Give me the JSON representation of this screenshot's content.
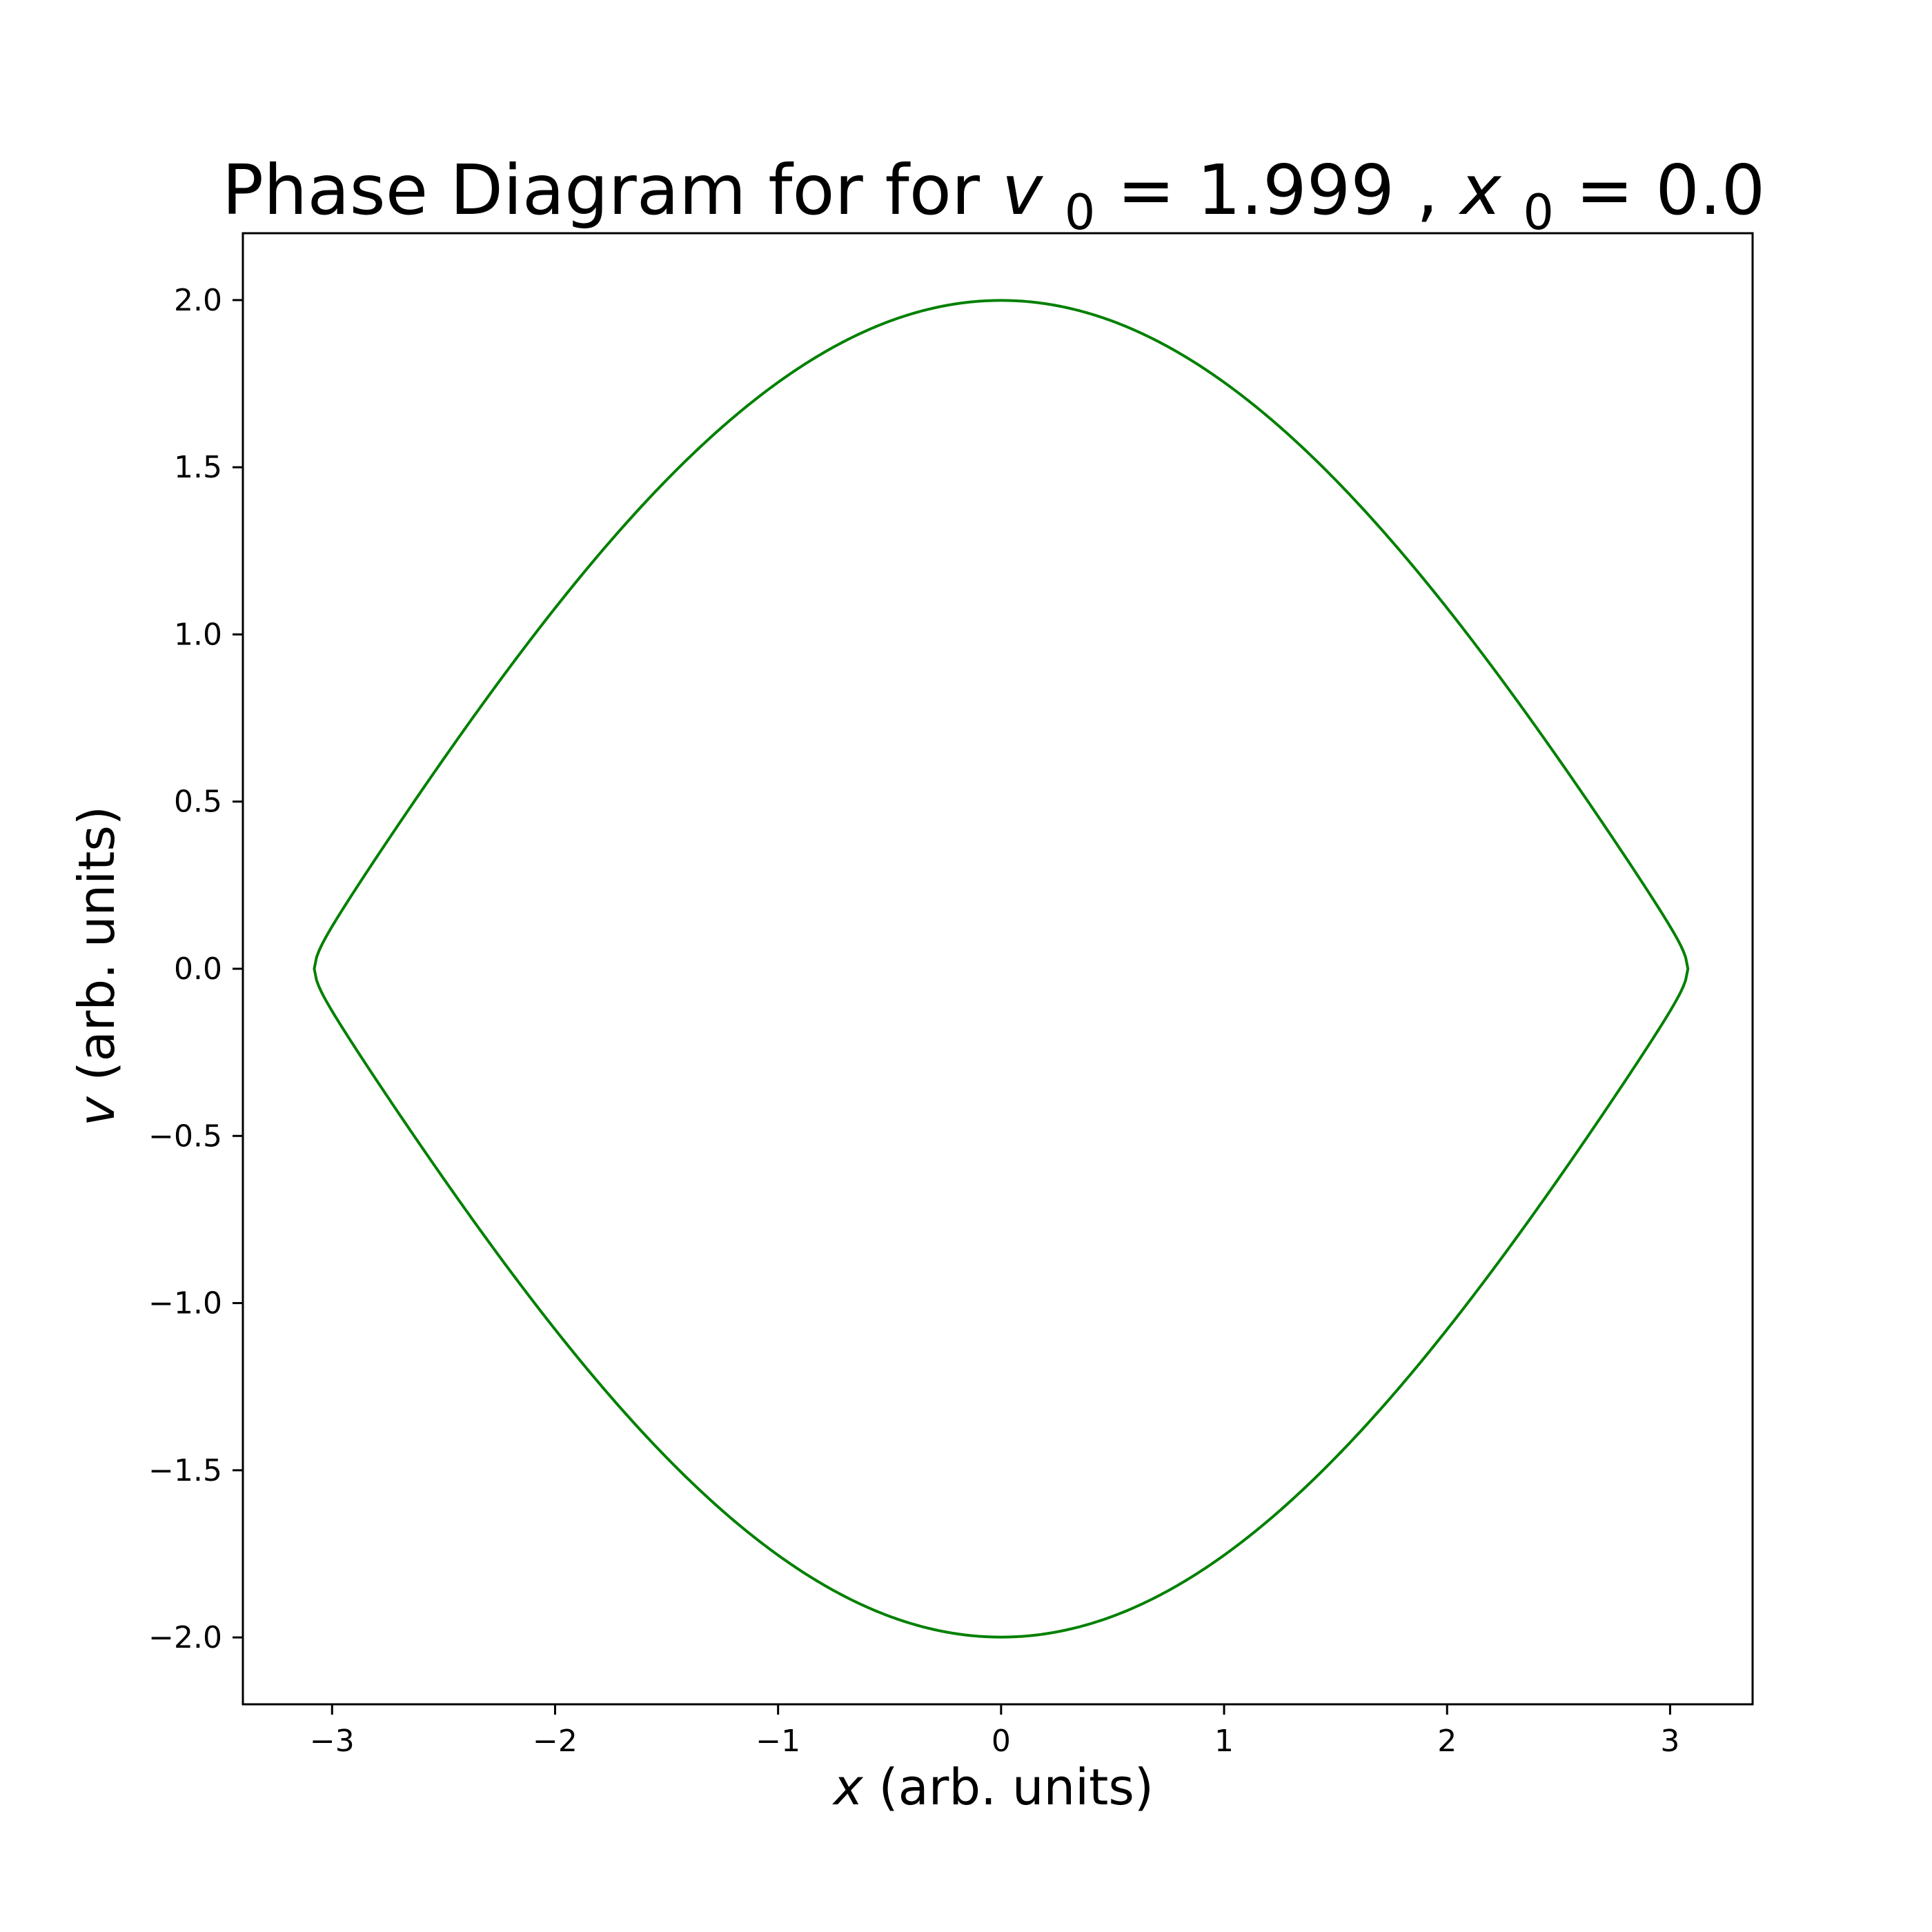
{
  "chart_data": {
    "type": "line",
    "title": {
      "prefix": "Phase Diagram for for ",
      "var1": "v",
      "sub1": "0",
      "eq1": " = 1.999 , ",
      "var2": "x",
      "sub2": "0",
      "eq2": " = 0.0"
    },
    "xlabel": {
      "var": "x",
      "rest": " (arb. units)"
    },
    "ylabel": {
      "var": "v",
      "rest": " (arb. units)"
    },
    "xlim": [
      -3.4,
      3.37
    ],
    "ylim": [
      -2.2,
      2.2
    ],
    "xticks": [
      -3,
      -2,
      -1,
      0,
      1,
      2,
      3
    ],
    "xtick_labels": [
      "−3",
      "−2",
      "−1",
      "0",
      "1",
      "2",
      "3"
    ],
    "yticks": [
      2.0,
      1.5,
      1.0,
      0.5,
      0.0,
      -0.5,
      -1.0,
      -1.5,
      -2.0
    ],
    "ytick_labels": [
      "2.0",
      "1.5",
      "1.0",
      "0.5",
      "0.0",
      "−0.5",
      "−1.0",
      "−1.5",
      "−2.0"
    ],
    "grid": false,
    "series": [
      {
        "model": "pendulum phase trajectory v = ±sqrt(v0² − 4·sin²(x/2))",
        "v0": 1.999,
        "x0": 0.0,
        "x_turning": 3.08,
        "v_max": 1.999,
        "color": "#008000"
      }
    ]
  }
}
